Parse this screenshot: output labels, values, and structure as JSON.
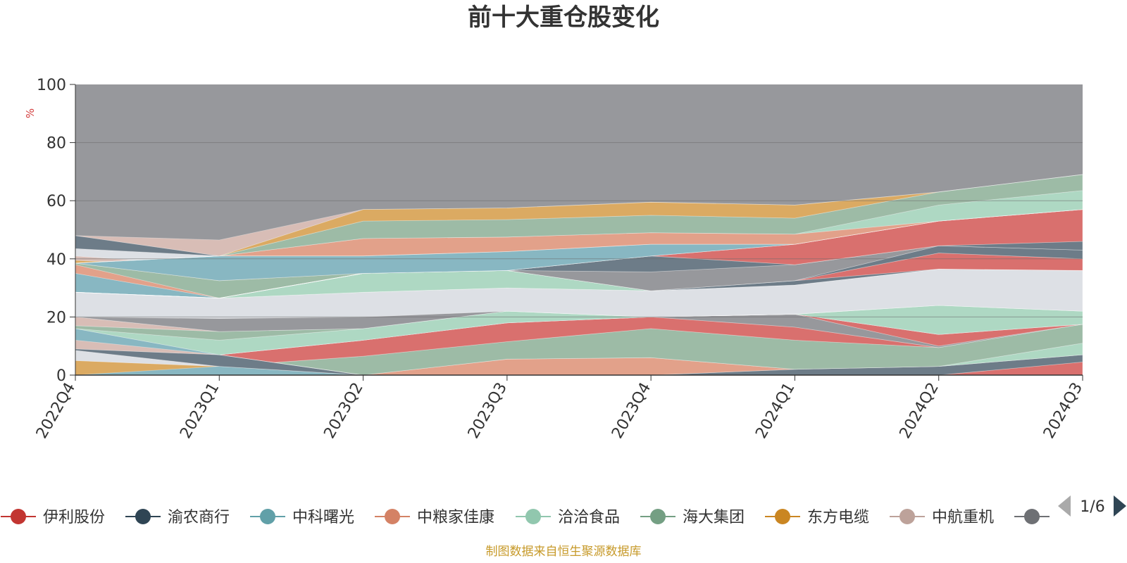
{
  "chart_data": {
    "type": "area",
    "title": "前十大重仓股变化",
    "ylabel": "%",
    "ylim": [
      0,
      100
    ],
    "yticks": [
      0,
      20,
      40,
      60,
      80,
      100
    ],
    "grid": true,
    "legend_position": "bottom",
    "categories": [
      "2022Q4",
      "2023Q1",
      "2023Q2",
      "2023Q3",
      "2023Q4",
      "2024Q1",
      "2024Q2",
      "2024Q3"
    ],
    "background_color": "#97989c",
    "layers": [
      {
        "color": "#d9706e",
        "lower": [
          0,
          0,
          0,
          0,
          0,
          0,
          0,
          0
        ],
        "upper": [
          0,
          0,
          0,
          0,
          0,
          0,
          0,
          4.5
        ]
      },
      {
        "color": "#6d7c88",
        "lower": [
          0,
          0,
          0,
          0,
          0,
          0,
          0,
          4.5
        ],
        "upper": [
          0,
          0,
          0,
          0,
          0,
          2,
          3,
          7
        ]
      },
      {
        "color": "#88b7c2",
        "lower": [
          0,
          0,
          0,
          0,
          0,
          2,
          3,
          7
        ],
        "upper": [
          0,
          3,
          0,
          0,
          0,
          2,
          3,
          7
        ]
      },
      {
        "color": "#e2a18a",
        "lower": [
          0,
          3,
          0,
          0,
          0,
          2,
          3,
          7
        ],
        "upper": [
          0,
          3,
          0,
          5.5,
          6,
          2,
          3,
          7
        ]
      },
      {
        "color": "#aed8c3",
        "lower": [
          0,
          3,
          0,
          5.5,
          6,
          2,
          3,
          7
        ],
        "upper": [
          0,
          3,
          0,
          5.5,
          6,
          2,
          3,
          11
        ]
      },
      {
        "color": "#9dbba6",
        "lower": [
          0,
          3,
          0,
          5.5,
          6,
          2,
          3,
          11
        ],
        "upper": [
          0,
          3,
          6.5,
          11.5,
          16,
          12,
          9.5,
          17.5
        ]
      },
      {
        "color": "#d9706e",
        "lower": [
          0,
          3,
          6.5,
          11.5,
          16,
          12,
          9.5,
          17.5
        ],
        "upper": [
          0,
          7,
          12,
          18,
          20,
          16.5,
          9.5,
          17.5
        ]
      },
      {
        "color": "#97989c",
        "lower": [
          0,
          7,
          12,
          18,
          20,
          16.5,
          9.5,
          17.5
        ],
        "upper": [
          0,
          7,
          12,
          18,
          20,
          21,
          10,
          17.5
        ]
      },
      {
        "color": "#d9706e",
        "lower": [
          0,
          7,
          12,
          18,
          20,
          21,
          10,
          17.5
        ],
        "upper": [
          0,
          7,
          12,
          18,
          20,
          21,
          14,
          17.5
        ]
      },
      {
        "color": "#6d7c88",
        "lower": [
          0,
          7,
          12,
          18,
          20,
          21,
          14,
          17.5
        ],
        "upper": [
          0,
          7,
          16,
          22,
          20,
          21,
          14,
          17.5
        ]
      },
      {
        "color": "#e2a18a",
        "lower": [
          0,
          7,
          16,
          22,
          20,
          21,
          14,
          17.5
        ],
        "upper": [
          0,
          7,
          16,
          22,
          20,
          21,
          19,
          19
        ]
      },
      {
        "color": "#dbaa62",
        "lower": [
          0,
          7,
          16,
          22,
          20,
          21,
          19,
          19
        ],
        "upper": [
          0,
          7,
          16,
          22,
          20,
          21,
          24,
          22
        ]
      },
      {
        "color": "#dbaa62",
        "lower": [
          0,
          0,
          0,
          0,
          0,
          0,
          0,
          0
        ],
        "upper": [
          5,
          3,
          0,
          0,
          0,
          0,
          0,
          0
        ]
      },
      {
        "color": "#88b7c2",
        "lower": [
          0,
          0,
          0,
          0,
          0,
          0,
          0,
          0
        ],
        "upper": [
          0,
          3,
          0,
          0,
          0,
          0,
          0,
          0
        ]
      },
      {
        "color": "#dde0e5",
        "lower": [
          5,
          3,
          0,
          0,
          0,
          0,
          0,
          0
        ],
        "upper": [
          8.5,
          3,
          0,
          0,
          0,
          0,
          0,
          0
        ]
      },
      {
        "color": "#6d7c88",
        "lower": [
          8.5,
          3,
          0,
          0,
          0,
          0,
          0,
          0
        ],
        "upper": [
          9,
          7,
          0,
          0,
          0,
          0,
          0,
          0
        ]
      },
      {
        "color": "#d8bdb6",
        "lower": [
          9,
          7,
          0,
          0,
          0,
          0,
          0,
          0
        ],
        "upper": [
          12.5,
          7,
          0,
          0,
          0,
          0,
          0,
          0
        ]
      },
      {
        "color": "#dde0e5",
        "lower": [
          12.5,
          7,
          0,
          0,
          0,
          0,
          0,
          0
        ],
        "upper": [
          16,
          7,
          0,
          0,
          0,
          0,
          0,
          0
        ]
      },
      {
        "color": "#88b7c2",
        "lower": [
          12,
          7,
          12,
          18,
          20,
          21,
          14,
          17.5
        ],
        "upper": [
          16,
          7,
          16,
          22,
          20,
          21,
          24,
          22
        ]
      },
      {
        "color": "#aed8c3",
        "lower": [
          16,
          7,
          12,
          18,
          20,
          21,
          14,
          17.5
        ],
        "upper": [
          16,
          12,
          16,
          22,
          20,
          21,
          24,
          22
        ]
      },
      {
        "color": "#9dbba6",
        "lower": [
          16,
          12,
          16,
          22,
          20,
          21,
          24,
          22
        ],
        "upper": [
          17,
          15,
          16,
          22,
          20,
          21,
          24,
          22
        ]
      },
      {
        "color": "#d8bdb6",
        "lower": [
          17,
          15,
          16,
          22,
          20,
          21,
          24,
          22
        ],
        "upper": [
          20,
          15,
          16,
          22,
          20,
          21,
          24,
          22
        ]
      },
      {
        "color": "#97989c",
        "lower": [
          20,
          15,
          16,
          22,
          20,
          21,
          24,
          22
        ],
        "upper": [
          20,
          19.5,
          20,
          22,
          20,
          21,
          24,
          22
        ]
      },
      {
        "color": "#dde0e5",
        "lower": [
          20,
          19.5,
          20,
          22,
          20,
          21,
          24,
          22
        ],
        "upper": [
          28.5,
          26.5,
          28.5,
          30,
          29,
          31,
          36.5,
          36
        ]
      },
      {
        "color": "#88b7c2",
        "lower": [
          28.5,
          26.5,
          28.5,
          30,
          29,
          31,
          36.5,
          36
        ],
        "upper": [
          35,
          26.5,
          28.5,
          30,
          29,
          31,
          36.5,
          36
        ]
      },
      {
        "color": "#e2a18a",
        "lower": [
          35,
          26.5,
          28.5,
          30,
          29,
          31,
          36.5,
          36
        ],
        "upper": [
          38,
          26.5,
          28.5,
          30,
          29,
          31,
          36.5,
          36
        ]
      },
      {
        "color": "#aed8c3",
        "lower": [
          28.5,
          26.5,
          28.5,
          30,
          29,
          31,
          36.5,
          36
        ],
        "upper": [
          28.5,
          26.5,
          35,
          36,
          29,
          31,
          36.5,
          36
        ]
      },
      {
        "color": "#9dbba6",
        "lower": [
          38,
          26.5,
          35,
          36,
          29,
          31,
          36.5,
          36
        ],
        "upper": [
          38.5,
          32.5,
          35,
          36,
          29,
          31,
          36.5,
          36
        ]
      },
      {
        "color": "#6d7c88",
        "lower": [
          28.5,
          26.5,
          35,
          36,
          29,
          31,
          36.5,
          36
        ],
        "upper": [
          28.5,
          26.5,
          35,
          36,
          29,
          32.5,
          36.5,
          36
        ]
      },
      {
        "color": "#d9706e",
        "lower": [
          28.5,
          26.5,
          35,
          36,
          29,
          32.5,
          36.5,
          36
        ],
        "upper": [
          28.5,
          26.5,
          35,
          36,
          29,
          32.5,
          42,
          40
        ]
      },
      {
        "color": "#6d7c88",
        "lower": [
          28.5,
          26.5,
          35,
          36,
          29,
          32.5,
          42,
          40
        ],
        "upper": [
          28.5,
          26.5,
          35,
          36,
          29,
          32.5,
          44.5,
          43
        ]
      },
      {
        "color": "#97989c",
        "lower": [
          28.5,
          26.5,
          35,
          36,
          29,
          32.5,
          44.5,
          43
        ],
        "upper": [
          28.5,
          26.5,
          35,
          36,
          35.5,
          38,
          44.5,
          43
        ]
      },
      {
        "color": "#6d7c88",
        "lower": [
          28.5,
          26.5,
          35,
          36,
          35.5,
          38,
          44.5,
          43
        ],
        "upper": [
          28.5,
          26.5,
          35,
          36,
          41,
          38,
          44.5,
          46
        ]
      },
      {
        "color": "#d9706e",
        "lower": [
          28.5,
          26.5,
          35,
          36,
          41,
          38,
          44.5,
          46
        ],
        "upper": [
          28.5,
          26.5,
          35,
          36,
          41,
          45,
          53,
          57
        ]
      },
      {
        "color": "#dbaa62",
        "lower": [
          38.5,
          32.5,
          35,
          36,
          41,
          45,
          53,
          57
        ],
        "upper": [
          39.5,
          37.5,
          35,
          36,
          41,
          45,
          53,
          57
        ]
      },
      {
        "color": "#d8bdb6",
        "lower": [
          39.5,
          37.5,
          35,
          36,
          41,
          45,
          53,
          57
        ],
        "upper": [
          41,
          37.5,
          35,
          36,
          41,
          45,
          53,
          57
        ]
      },
      {
        "color": "#dde0e5",
        "lower": [
          41,
          37.5,
          35,
          36,
          41,
          45,
          53,
          57
        ],
        "upper": [
          43.5,
          41,
          35,
          36,
          41,
          45,
          53,
          57
        ]
      },
      {
        "color": "#88b7c2",
        "lower": [
          38.5,
          32.5,
          35,
          36,
          41,
          45,
          53,
          57
        ],
        "upper": [
          38.5,
          41,
          41,
          42.5,
          45,
          45,
          53,
          57
        ]
      },
      {
        "color": "#e2a18a",
        "lower": [
          38.5,
          41,
          41,
          42.5,
          45,
          45,
          53,
          57
        ],
        "upper": [
          38.5,
          41,
          47,
          47.5,
          49,
          48.5,
          53,
          57
        ]
      },
      {
        "color": "#aed8c3",
        "lower": [
          38.5,
          41,
          47,
          47.5,
          49,
          48.5,
          53,
          57
        ],
        "upper": [
          38.5,
          41,
          47,
          47.5,
          49,
          48.5,
          58.5,
          63.5
        ]
      },
      {
        "color": "#9dbba6",
        "lower": [
          38.5,
          41,
          47,
          47.5,
          49,
          48.5,
          58.5,
          63.5
        ],
        "upper": [
          38.5,
          41,
          53,
          53.5,
          55,
          54,
          63,
          69
        ]
      },
      {
        "color": "#dbaa62",
        "lower": [
          38.5,
          41,
          53,
          53.5,
          55,
          54,
          63,
          69
        ],
        "upper": [
          38.5,
          41,
          57,
          57.5,
          59.5,
          58.5,
          63,
          69
        ]
      },
      {
        "color": "#6d7c88",
        "lower": [
          43.5,
          41,
          41,
          42.5,
          45,
          45,
          53,
          57
        ],
        "upper": [
          48,
          41,
          41,
          42.5,
          45,
          45,
          53,
          57
        ]
      },
      {
        "color": "#d8bdb6",
        "lower": [
          48,
          41,
          57,
          57.5,
          59.5,
          58.5,
          63,
          69
        ],
        "upper": [
          48,
          46.5,
          57,
          57.5,
          59.5,
          58.5,
          63,
          69
        ]
      }
    ],
    "legend": [
      {
        "name": "伊利股份",
        "color": "#c23531"
      },
      {
        "name": "渝农商行",
        "color": "#2f4554"
      },
      {
        "name": "中科曙光",
        "color": "#61a0a8"
      },
      {
        "name": "中粮家佳康",
        "color": "#d48265"
      },
      {
        "name": "洽洽食品",
        "color": "#91c7ae"
      },
      {
        "name": "海大集团",
        "color": "#749f83"
      },
      {
        "name": "东方电缆",
        "color": "#ca8622"
      },
      {
        "name": "中航重机",
        "color": "#bda29a"
      },
      {
        "name": "",
        "color": "#6e7074"
      }
    ],
    "legend_page": "1/6"
  },
  "source_note": "制图数据来自恒生聚源数据库"
}
